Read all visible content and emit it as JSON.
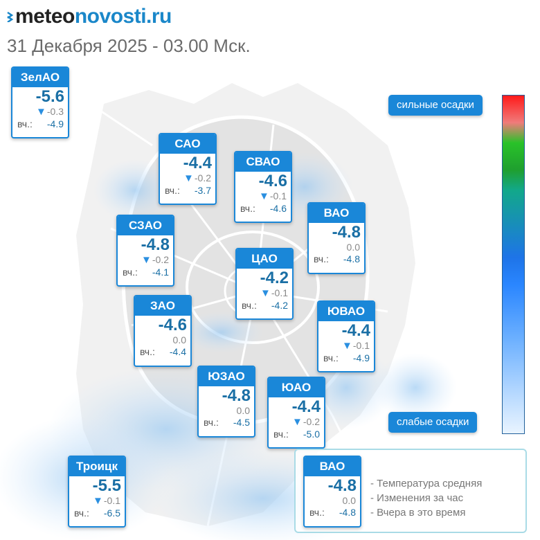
{
  "header": {
    "logo_part1": "meteo",
    "logo_part2": "novosti.ru",
    "date": "31 Декабря 2025 - 03.00 Мск."
  },
  "scale": {
    "top_label": "сильные осадки",
    "bottom_label": "слабые осадки"
  },
  "yesterday_label": "вч.:",
  "districts": [
    {
      "name": "ЗелАО",
      "temp": "-5.6",
      "change": "-0.3",
      "trend": "down",
      "yesterday": "-4.9"
    },
    {
      "name": "САО",
      "temp": "-4.4",
      "change": "-0.2",
      "trend": "down",
      "yesterday": "-3.7"
    },
    {
      "name": "СВАО",
      "temp": "-4.6",
      "change": "-0.1",
      "trend": "down",
      "yesterday": "-4.6"
    },
    {
      "name": "ВАО",
      "temp": "-4.8",
      "change": "0.0",
      "trend": "none",
      "yesterday": "-4.8"
    },
    {
      "name": "СЗАО",
      "temp": "-4.8",
      "change": "-0.2",
      "trend": "down",
      "yesterday": "-4.1"
    },
    {
      "name": "ЦАО",
      "temp": "-4.2",
      "change": "-0.1",
      "trend": "down",
      "yesterday": "-4.2"
    },
    {
      "name": "ЗАО",
      "temp": "-4.6",
      "change": "0.0",
      "trend": "none",
      "yesterday": "-4.4"
    },
    {
      "name": "ЮВАО",
      "temp": "-4.4",
      "change": "-0.1",
      "trend": "down",
      "yesterday": "-4.9"
    },
    {
      "name": "ЮЗАО",
      "temp": "-4.8",
      "change": "0.0",
      "trend": "none",
      "yesterday": "-4.5"
    },
    {
      "name": "ЮАО",
      "temp": "-4.4",
      "change": "-0.2",
      "trend": "down",
      "yesterday": "-5.0"
    },
    {
      "name": "Троицк",
      "temp": "-5.5",
      "change": "-0.1",
      "trend": "down",
      "yesterday": "-6.5"
    }
  ],
  "legend": {
    "sample": {
      "name": "ВАО",
      "temp": "-4.8",
      "change": "0.0",
      "trend": "none",
      "yesterday": "-4.8"
    },
    "lines": [
      "- Температура средняя",
      "- Изменения за час",
      "- Вчера в это время"
    ]
  },
  "colors": {
    "card_accent": "#1a87d8",
    "temp_text": "#1a6fa5",
    "trend_arrow": "#2a8fe0"
  }
}
